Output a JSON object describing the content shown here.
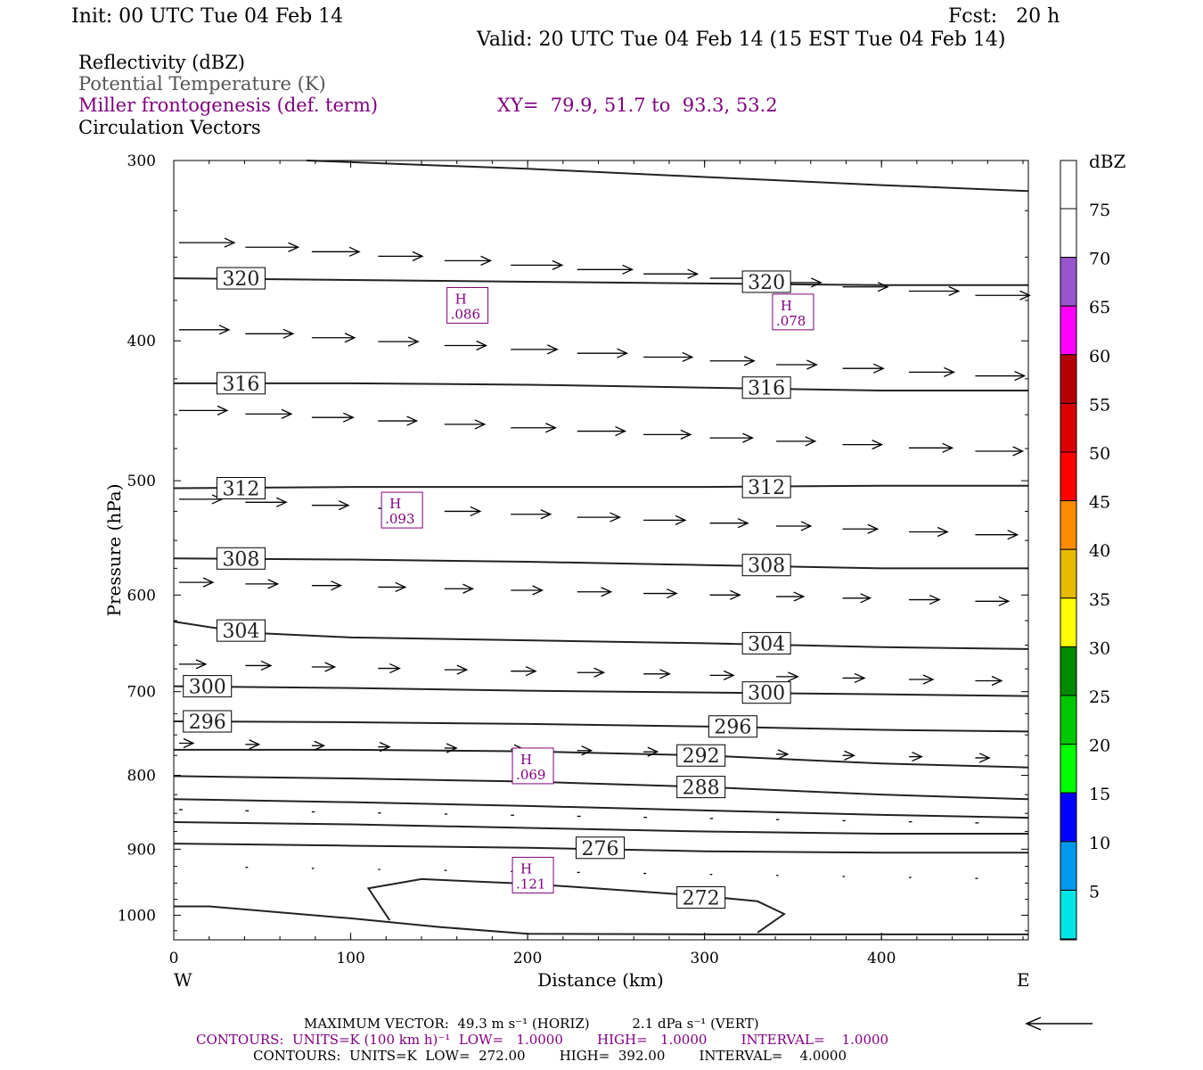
{
  "header": {
    "init": "Init: 00 UTC Tue 04 Feb 14",
    "fcst": "Fcst:   20 h",
    "valid": "Valid: 20 UTC Tue 04 Feb 14 (15 EST Tue 04 Feb 14)"
  },
  "fields": {
    "reflectivity": "Reflectivity (dBZ)",
    "theta": "Potential Temperature (K)",
    "frontogenesis": "Miller frontogenesis (def. term)",
    "xy": "XY=  79.9, 51.7 to  93.3, 53.2",
    "vectors": "Circulation Vectors"
  },
  "colors": {
    "theta_contour": "#222222",
    "frontogenesis": "#800080",
    "vector": "#000000"
  },
  "chart_data": {
    "type": "line",
    "xlabel": "Distance (km)",
    "ylabel": "Pressure (hPa)",
    "xlim": [
      0,
      483
    ],
    "ylim": [
      1040,
      300
    ],
    "y_log": true,
    "x_ticks": [
      0,
      100,
      200,
      300,
      400
    ],
    "y_ticks": [
      300,
      400,
      500,
      600,
      700,
      800,
      900,
      1000
    ],
    "x_left_label": "W",
    "x_right_label": "E",
    "theta_contours": [
      {
        "value": 320,
        "pts": [
          [
            0,
            362
          ],
          [
            100,
            363
          ],
          [
            200,
            364
          ],
          [
            300,
            365
          ],
          [
            400,
            366
          ],
          [
            483,
            366
          ]
        ],
        "labels": [
          [
            38,
            362
          ],
          [
            335,
            364
          ]
        ]
      },
      {
        "value": 316,
        "pts": [
          [
            0,
            428
          ],
          [
            100,
            428
          ],
          [
            200,
            429
          ],
          [
            300,
            431
          ],
          [
            400,
            433
          ],
          [
            483,
            433
          ]
        ],
        "labels": [
          [
            38,
            428
          ],
          [
            335,
            431
          ]
        ]
      },
      {
        "value": 312,
        "pts": [
          [
            0,
            506
          ],
          [
            100,
            505
          ],
          [
            200,
            505
          ],
          [
            300,
            505
          ],
          [
            400,
            504
          ],
          [
            483,
            504
          ]
        ],
        "labels": [
          [
            38,
            506
          ],
          [
            335,
            505
          ]
        ]
      },
      {
        "value": 308,
        "pts": [
          [
            0,
            566
          ],
          [
            100,
            567
          ],
          [
            200,
            569
          ],
          [
            300,
            572
          ],
          [
            400,
            575
          ],
          [
            483,
            575
          ]
        ],
        "labels": [
          [
            38,
            566
          ],
          [
            335,
            572
          ]
        ]
      },
      {
        "value": 304,
        "pts": [
          [
            0,
            626
          ],
          [
            40,
            637
          ],
          [
            100,
            642
          ],
          [
            200,
            645
          ],
          [
            300,
            648
          ],
          [
            400,
            652
          ],
          [
            483,
            654
          ]
        ],
        "labels": [
          [
            38,
            635
          ],
          [
            335,
            648
          ]
        ]
      },
      {
        "value": 300,
        "pts": [
          [
            0,
            694
          ],
          [
            100,
            696
          ],
          [
            200,
            699
          ],
          [
            300,
            701
          ],
          [
            400,
            703
          ],
          [
            483,
            705
          ]
        ],
        "labels": [
          [
            19,
            694
          ],
          [
            335,
            701
          ]
        ]
      },
      {
        "value": 296,
        "pts": [
          [
            0,
            734
          ],
          [
            100,
            735
          ],
          [
            200,
            737
          ],
          [
            300,
            740
          ],
          [
            400,
            744
          ],
          [
            483,
            746
          ]
        ],
        "labels": [
          [
            19,
            734
          ],
          [
            316,
            740
          ]
        ]
      },
      {
        "value": 292,
        "pts": [
          [
            0,
            768
          ],
          [
            100,
            768
          ],
          [
            200,
            770
          ],
          [
            300,
            775
          ],
          [
            400,
            785
          ],
          [
            483,
            790
          ]
        ],
        "labels": [
          [
            298,
            775
          ]
        ]
      },
      {
        "value": 288,
        "pts": [
          [
            0,
            801
          ],
          [
            100,
            804
          ],
          [
            200,
            808
          ],
          [
            300,
            815
          ],
          [
            400,
            825
          ],
          [
            483,
            831
          ]
        ],
        "labels": [
          [
            298,
            815
          ]
        ]
      },
      {
        "value": 284,
        "pts": [
          [
            0,
            831
          ],
          [
            100,
            835
          ],
          [
            200,
            840
          ],
          [
            300,
            846
          ],
          [
            400,
            852
          ],
          [
            483,
            856
          ]
        ],
        "labels": []
      },
      {
        "value": 280,
        "pts": [
          [
            0,
            862
          ],
          [
            100,
            865
          ],
          [
            200,
            870
          ],
          [
            300,
            875
          ],
          [
            400,
            878
          ],
          [
            483,
            878
          ]
        ],
        "labels": []
      },
      {
        "value": 276,
        "pts": [
          [
            0,
            892
          ],
          [
            100,
            895
          ],
          [
            200,
            898
          ],
          [
            300,
            903
          ],
          [
            400,
            905
          ],
          [
            483,
            905
          ]
        ],
        "labels": [
          [
            241,
            898
          ]
        ]
      },
      {
        "value": 272,
        "pts": [
          [
            122,
            1008
          ],
          [
            110,
            958
          ],
          [
            140,
            944
          ],
          [
            200,
            951
          ],
          [
            260,
            962
          ],
          [
            300,
            970
          ],
          [
            330,
            978
          ],
          [
            345,
            998
          ],
          [
            330,
            1028
          ]
        ],
        "labels": [
          [
            298,
            972
          ]
        ]
      },
      {
        "value": 268,
        "pts": [
          [
            0,
            986
          ],
          [
            20,
            986
          ],
          [
            100,
            1005
          ],
          [
            150,
            1019
          ],
          [
            200,
            1030
          ],
          [
            300,
            1031
          ],
          [
            400,
            1031
          ],
          [
            483,
            1031
          ]
        ],
        "labels": []
      }
    ],
    "theta_top_partial": {
      "pts": [
        [
          75,
          300
        ],
        [
          200,
          304
        ],
        [
          300,
          308
        ],
        [
          400,
          312
        ],
        [
          483,
          315
        ]
      ]
    },
    "frontogenesis_highs": [
      {
        "label": "H",
        "value": ".086",
        "x": 166,
        "p": 378
      },
      {
        "label": "H",
        "value": ".078",
        "x": 350,
        "p": 382
      },
      {
        "label": "H",
        "value": ".093",
        "x": 129,
        "p": 524
      },
      {
        "label": "H",
        "value": ".069",
        "x": 203,
        "p": 788
      },
      {
        "label": "H",
        "value": ".121",
        "x": 203,
        "p": 938
      }
    ],
    "colorbar": {
      "unit": "dBZ",
      "levels": [
        5,
        10,
        15,
        20,
        25,
        30,
        35,
        40,
        45,
        50,
        55,
        60,
        65,
        70,
        75
      ],
      "colors": [
        "#ffffff",
        "#00e5e5",
        "#0099ee",
        "#0000ff",
        "#00ff00",
        "#00c800",
        "#008a00",
        "#ffff00",
        "#e6bb00",
        "#ff8c00",
        "#ff0000",
        "#d80000",
        "#b40000",
        "#ff00ff",
        "#9955cc",
        "#ffffff"
      ]
    }
  },
  "footer": {
    "max_vector": "MAXIMUM VECTOR:  49.3 m s⁻¹ (HORIZ)          2.1 dPa s⁻¹ (VERT)",
    "contours1": "CONTOURS:  UNITS=K (100 km h)⁻¹  LOW=   1.0000        HIGH=   1.0000        INTERVAL=    1.0000",
    "contours2": "CONTOURS:  UNITS=K  LOW=  272.00        HIGH=  392.00        INTERVAL=    4.0000"
  }
}
